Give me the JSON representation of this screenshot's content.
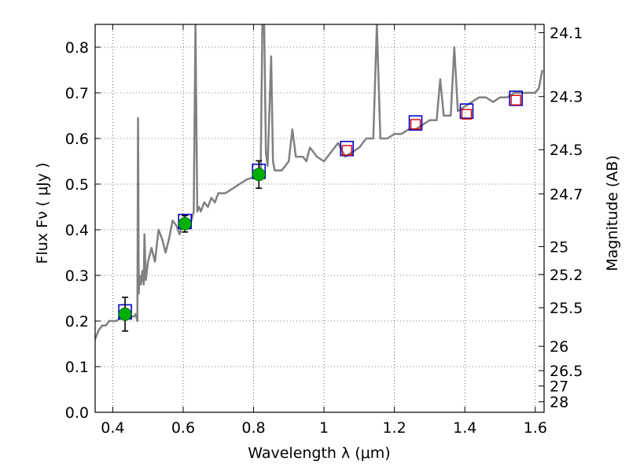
{
  "chart_data": {
    "type": "scatter",
    "title": "",
    "xlabel": "Wavelength  λ (μm)",
    "ylabel": "Flux  Fν  ( μJy )",
    "y2label": "Magnitude (AB)",
    "xlim": [
      0.35,
      1.625
    ],
    "ylim": [
      0.0,
      0.85
    ],
    "grid": true,
    "x_ticks": [
      0.4,
      0.6,
      0.8,
      1.0,
      1.2,
      1.4,
      1.6
    ],
    "x_tick_labels": [
      "0.4",
      "0.6",
      "0.8",
      "1",
      "1.2",
      "1.4",
      "1.6"
    ],
    "y_ticks": [
      0.0,
      0.1,
      0.2,
      0.3,
      0.4,
      0.5,
      0.6,
      0.7,
      0.8
    ],
    "y_tick_labels": [
      "0.0",
      "0.1",
      "0.2",
      "0.3",
      "0.4",
      "0.5",
      "0.6",
      "0.7",
      "0.8"
    ],
    "y2_ticks": [
      24.1,
      24.3,
      24.5,
      24.7,
      25.0,
      25.2,
      25.5,
      26.0,
      26.5,
      27.0,
      28.0
    ],
    "y2_tick_labels": [
      "24.1",
      "24.3",
      "24.5",
      "24.7",
      "25",
      "25.2",
      "25.5",
      "26",
      "26.5",
      "27",
      "28"
    ],
    "colors": {
      "spectrum": "#808080",
      "observed": "#00b000",
      "model_box": "#0000cc",
      "predicted": "#dd0000"
    },
    "series": [
      {
        "role": "spectrum",
        "x": [
          0.35,
          0.355,
          0.36,
          0.37,
          0.38,
          0.39,
          0.4,
          0.41,
          0.42,
          0.43,
          0.44,
          0.45,
          0.46,
          0.465,
          0.47,
          0.472,
          0.474,
          0.476,
          0.48,
          0.484,
          0.488,
          0.49,
          0.494,
          0.5,
          0.51,
          0.52,
          0.53,
          0.54,
          0.55,
          0.56,
          0.57,
          0.58,
          0.59,
          0.6,
          0.61,
          0.62,
          0.63,
          0.635,
          0.64,
          0.645,
          0.65,
          0.66,
          0.67,
          0.68,
          0.69,
          0.7,
          0.72,
          0.74,
          0.76,
          0.78,
          0.8,
          0.82,
          0.825,
          0.83,
          0.835,
          0.84,
          0.85,
          0.855,
          0.86,
          0.88,
          0.9,
          0.91,
          0.92,
          0.94,
          0.95,
          0.96,
          0.97,
          0.98,
          1.0,
          1.02,
          1.04,
          1.06,
          1.08,
          1.1,
          1.12,
          1.14,
          1.15,
          1.16,
          1.18,
          1.2,
          1.22,
          1.24,
          1.26,
          1.28,
          1.3,
          1.32,
          1.33,
          1.34,
          1.36,
          1.37,
          1.38,
          1.4,
          1.42,
          1.44,
          1.46,
          1.48,
          1.5,
          1.52,
          1.54,
          1.56,
          1.58,
          1.6,
          1.61,
          1.62
        ],
        "y": [
          0.16,
          0.17,
          0.18,
          0.19,
          0.19,
          0.2,
          0.2,
          0.2,
          0.205,
          0.21,
          0.21,
          0.21,
          0.21,
          0.215,
          0.2,
          0.645,
          0.26,
          0.3,
          0.28,
          0.31,
          0.28,
          0.39,
          0.29,
          0.33,
          0.36,
          0.33,
          0.4,
          0.38,
          0.35,
          0.38,
          0.42,
          0.41,
          0.39,
          0.42,
          0.42,
          0.41,
          0.44,
          0.85,
          0.44,
          0.45,
          0.44,
          0.46,
          0.45,
          0.47,
          0.46,
          0.48,
          0.48,
          0.49,
          0.5,
          0.51,
          0.515,
          0.52,
          0.85,
          0.85,
          0.57,
          0.54,
          0.78,
          0.55,
          0.53,
          0.53,
          0.55,
          0.62,
          0.56,
          0.56,
          0.55,
          0.58,
          0.57,
          0.56,
          0.55,
          0.57,
          0.59,
          0.56,
          0.57,
          0.58,
          0.6,
          0.6,
          0.85,
          0.6,
          0.6,
          0.61,
          0.61,
          0.62,
          0.62,
          0.63,
          0.64,
          0.64,
          0.73,
          0.65,
          0.65,
          0.8,
          0.66,
          0.67,
          0.68,
          0.69,
          0.69,
          0.68,
          0.69,
          0.69,
          0.7,
          0.7,
          0.7,
          0.7,
          0.71,
          0.75
        ]
      },
      {
        "role": "observed",
        "x": [
          0.435,
          0.605,
          0.815
        ],
        "y": [
          0.215,
          0.413,
          0.521
        ],
        "yerr": [
          0.037,
          0.018,
          0.03
        ]
      },
      {
        "role": "model",
        "x": [
          0.435,
          0.605,
          0.815,
          1.065,
          1.26,
          1.405,
          1.545
        ],
        "y": [
          0.22,
          0.418,
          0.528,
          0.578,
          0.634,
          0.66,
          0.688
        ]
      },
      {
        "role": "predicted",
        "x": [
          1.065,
          1.26,
          1.405,
          1.545
        ],
        "y": [
          0.574,
          0.631,
          0.653,
          0.684
        ]
      }
    ]
  }
}
